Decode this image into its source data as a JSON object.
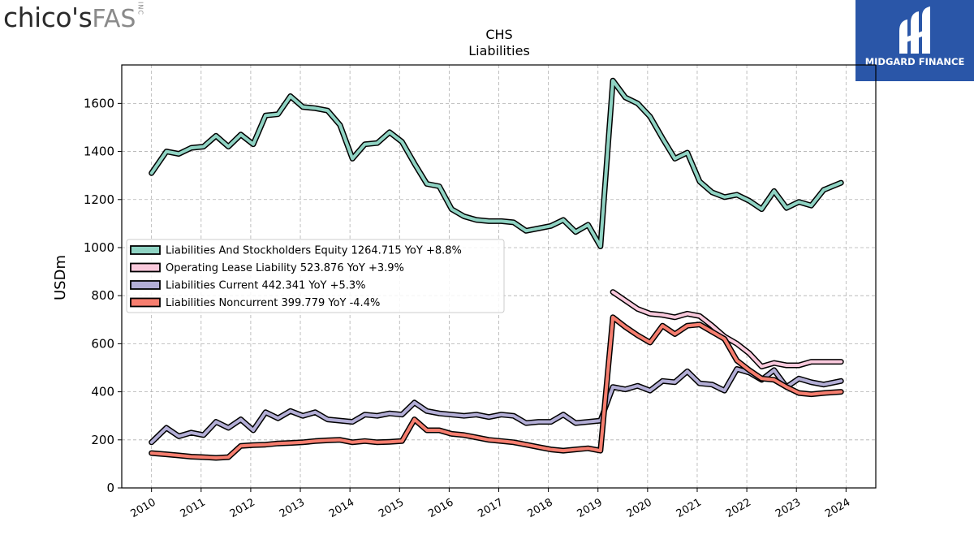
{
  "branding": {
    "left_logo_main": "chico's",
    "left_logo_sub": "FAS",
    "left_logo_inc": "INC",
    "right_logo_text": "MIDGARD FINANCE",
    "right_logo_bg": "#2a56a8"
  },
  "chart_data": {
    "type": "line",
    "title": "CHS",
    "subtitle": "Liabilities",
    "ylabel": "USDm",
    "xlabel": "",
    "xlim": [
      2009.4,
      2024.6
    ],
    "ylim": [
      0,
      1760
    ],
    "yticks": [
      0,
      200,
      400,
      600,
      800,
      1000,
      1200,
      1400,
      1600
    ],
    "xticks": [
      2010,
      2011,
      2012,
      2013,
      2014,
      2015,
      2016,
      2017,
      2018,
      2019,
      2020,
      2021,
      2022,
      2023,
      2024
    ],
    "grid": true,
    "legend_position": "center-left",
    "series": [
      {
        "name": "Liabilities And Stockholders Equity",
        "legend": "Liabilities And Stockholders Equity  1264.715 YoY +8.8%",
        "color": "#8fd3c3",
        "x": [
          2010.0,
          2010.3,
          2010.55,
          2010.8,
          2011.05,
          2011.3,
          2011.55,
          2011.8,
          2012.05,
          2012.3,
          2012.55,
          2012.8,
          2013.05,
          2013.3,
          2013.55,
          2013.8,
          2014.05,
          2014.3,
          2014.55,
          2014.8,
          2015.05,
          2015.3,
          2015.55,
          2015.8,
          2016.05,
          2016.3,
          2016.55,
          2016.8,
          2017.05,
          2017.3,
          2017.55,
          2017.8,
          2018.05,
          2018.3,
          2018.55,
          2018.8,
          2019.05,
          2019.3,
          2019.55,
          2019.8,
          2020.05,
          2020.3,
          2020.55,
          2020.8,
          2021.05,
          2021.3,
          2021.55,
          2021.8,
          2022.05,
          2022.3,
          2022.55,
          2022.8,
          2023.05,
          2023.3,
          2023.55,
          2023.9
        ],
        "values": [
          1310,
          1400,
          1390,
          1415,
          1420,
          1465,
          1420,
          1470,
          1430,
          1550,
          1555,
          1630,
          1585,
          1580,
          1570,
          1510,
          1370,
          1430,
          1435,
          1480,
          1440,
          1350,
          1265,
          1255,
          1160,
          1130,
          1115,
          1110,
          1110,
          1105,
          1070,
          1080,
          1090,
          1115,
          1065,
          1095,
          1005,
          1695,
          1625,
          1600,
          1545,
          1455,
          1370,
          1395,
          1275,
          1230,
          1210,
          1220,
          1195,
          1160,
          1235,
          1165,
          1190,
          1175,
          1240,
          1270
        ]
      },
      {
        "name": "Operating Lease Liability",
        "legend": "Operating Lease Liability  523.876 YoY +3.9%",
        "color": "#f9c9dc",
        "x": [
          2019.3,
          2019.55,
          2019.8,
          2020.05,
          2020.3,
          2020.55,
          2020.8,
          2021.05,
          2021.3,
          2021.55,
          2021.8,
          2022.05,
          2022.3,
          2022.55,
          2022.8,
          2023.05,
          2023.3,
          2023.55,
          2023.9
        ],
        "values": [
          815,
          780,
          745,
          725,
          720,
          710,
          725,
          715,
          675,
          630,
          600,
          560,
          505,
          520,
          510,
          510,
          525,
          525,
          525
        ]
      },
      {
        "name": "Liabilities Current",
        "legend": "Liabilities Current  442.341 YoY +5.3%",
        "color": "#b3aed6",
        "x": [
          2010.0,
          2010.3,
          2010.55,
          2010.8,
          2011.05,
          2011.3,
          2011.55,
          2011.8,
          2012.05,
          2012.3,
          2012.55,
          2012.8,
          2013.05,
          2013.3,
          2013.55,
          2013.8,
          2014.05,
          2014.3,
          2014.55,
          2014.8,
          2015.05,
          2015.3,
          2015.55,
          2015.8,
          2016.05,
          2016.3,
          2016.55,
          2016.8,
          2017.05,
          2017.3,
          2017.55,
          2017.8,
          2018.05,
          2018.3,
          2018.55,
          2018.8,
          2019.05,
          2019.3,
          2019.55,
          2019.8,
          2020.05,
          2020.3,
          2020.55,
          2020.8,
          2021.05,
          2021.3,
          2021.55,
          2021.8,
          2022.05,
          2022.3,
          2022.55,
          2022.8,
          2023.05,
          2023.3,
          2023.55,
          2023.9
        ],
        "values": [
          190,
          250,
          215,
          230,
          220,
          275,
          250,
          285,
          240,
          315,
          290,
          320,
          300,
          315,
          285,
          280,
          275,
          305,
          300,
          310,
          305,
          355,
          320,
          310,
          305,
          300,
          305,
          295,
          305,
          300,
          270,
          275,
          275,
          305,
          270,
          275,
          280,
          420,
          410,
          425,
          405,
          445,
          440,
          485,
          435,
          430,
          405,
          495,
          480,
          450,
          490,
          420,
          455,
          440,
          430,
          445
        ]
      },
      {
        "name": "Liabilities Noncurrent",
        "legend": "Liabilities Noncurrent  399.779 YoY -4.4%",
        "color": "#f67e6f",
        "x": [
          2010.0,
          2010.3,
          2010.55,
          2010.8,
          2011.05,
          2011.3,
          2011.55,
          2011.8,
          2012.05,
          2012.3,
          2012.55,
          2012.8,
          2013.05,
          2013.3,
          2013.55,
          2013.8,
          2014.05,
          2014.3,
          2014.55,
          2014.8,
          2015.05,
          2015.3,
          2015.55,
          2015.8,
          2016.05,
          2016.3,
          2016.55,
          2016.8,
          2017.05,
          2017.3,
          2017.55,
          2017.8,
          2018.05,
          2018.3,
          2018.55,
          2018.8,
          2019.05,
          2019.3,
          2019.55,
          2019.8,
          2020.05,
          2020.3,
          2020.55,
          2020.8,
          2021.05,
          2021.3,
          2021.55,
          2021.8,
          2022.05,
          2022.3,
          2022.55,
          2022.8,
          2023.05,
          2023.3,
          2023.55,
          2023.9
        ],
        "values": [
          145,
          140,
          135,
          130,
          128,
          125,
          128,
          175,
          178,
          180,
          185,
          187,
          190,
          195,
          198,
          200,
          190,
          195,
          190,
          192,
          195,
          285,
          240,
          240,
          225,
          220,
          210,
          200,
          195,
          190,
          180,
          170,
          160,
          155,
          160,
          165,
          155,
          710,
          670,
          635,
          605,
          675,
          640,
          675,
          680,
          650,
          620,
          530,
          490,
          455,
          450,
          420,
          395,
          390,
          395,
          400
        ]
      }
    ]
  }
}
